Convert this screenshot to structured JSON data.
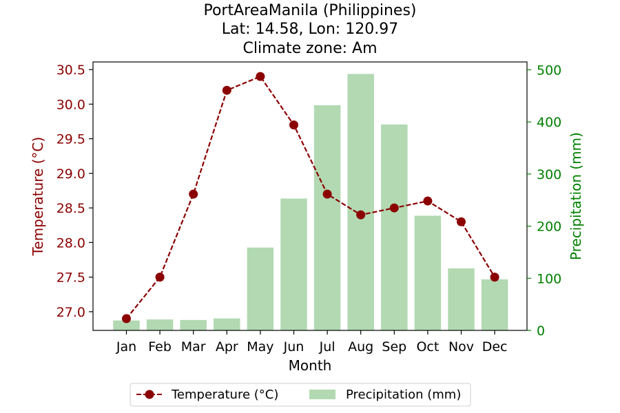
{
  "chart_data": {
    "type": "bar+line",
    "title_lines": [
      "PortAreaManila (Philippines)",
      "Lat: 14.58, Lon: 120.97",
      "Climate zone: Am"
    ],
    "xlabel": "Month",
    "ylabel_left": "Temperature (°C)",
    "ylabel_right": "Precipitation (mm)",
    "categories": [
      "Jan",
      "Feb",
      "Mar",
      "Apr",
      "May",
      "Jun",
      "Jul",
      "Aug",
      "Sep",
      "Oct",
      "Nov",
      "Dec"
    ],
    "temperature": {
      "name": "Temperature (°C)",
      "values": [
        26.9,
        27.5,
        28.7,
        30.2,
        30.4,
        29.7,
        28.7,
        28.4,
        28.5,
        28.6,
        28.3,
        27.5
      ],
      "color": "#8b0000"
    },
    "precipitation": {
      "name": "Precipitation (mm)",
      "values": [
        19,
        21,
        20,
        23,
        159,
        253,
        432,
        492,
        395,
        220,
        119,
        98
      ],
      "color": "#b2d9b2"
    },
    "ylim_left": [
      26.73,
      30.61
    ],
    "ylim_right": [
      0,
      515
    ],
    "yticks_left": [
      "27.0",
      "27.5",
      "28.0",
      "28.5",
      "29.0",
      "29.5",
      "30.0",
      "30.5"
    ],
    "yticks_right": [
      "0",
      "100",
      "200",
      "300",
      "400",
      "500"
    ],
    "left_axis_color": "#8b0000",
    "right_axis_color": "#008000",
    "grid": false,
    "legend_position": "bottom-center"
  }
}
